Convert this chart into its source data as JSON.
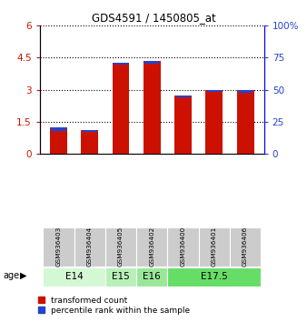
{
  "title": "GDS4591 / 1450805_at",
  "samples": [
    "GSM936403",
    "GSM936404",
    "GSM936405",
    "GSM936402",
    "GSM936400",
    "GSM936401",
    "GSM936406"
  ],
  "transformed_count": [
    1.22,
    1.12,
    4.28,
    4.33,
    2.73,
    3.0,
    2.98
  ],
  "blue_segment_height": [
    0.15,
    0.12,
    0.12,
    0.12,
    0.1,
    0.1,
    0.12
  ],
  "age_groups": [
    {
      "label": "E14",
      "start": 0,
      "end": 2,
      "color": "#d4f7d4"
    },
    {
      "label": "E15",
      "start": 2,
      "end": 3,
      "color": "#b8f0b8"
    },
    {
      "label": "E16",
      "start": 3,
      "end": 4,
      "color": "#99e899"
    },
    {
      "label": "E17.5",
      "start": 4,
      "end": 7,
      "color": "#66dd66"
    }
  ],
  "ylim_left": [
    0,
    6
  ],
  "ylim_right": [
    0,
    100
  ],
  "yticks_left": [
    0,
    1.5,
    3,
    4.5,
    6
  ],
  "yticks_right": [
    0,
    25,
    50,
    75,
    100
  ],
  "bar_color_red": "#cc1100",
  "bar_color_blue": "#2244cc",
  "bar_width": 0.55,
  "bg_color_plot": "#ffffff",
  "bg_color_sample": "#cccccc",
  "legend_red": "transformed count",
  "legend_blue": "percentile rank within the sample",
  "ylabel_right_ticks": [
    "0",
    "25",
    "50",
    "75",
    "100%"
  ]
}
